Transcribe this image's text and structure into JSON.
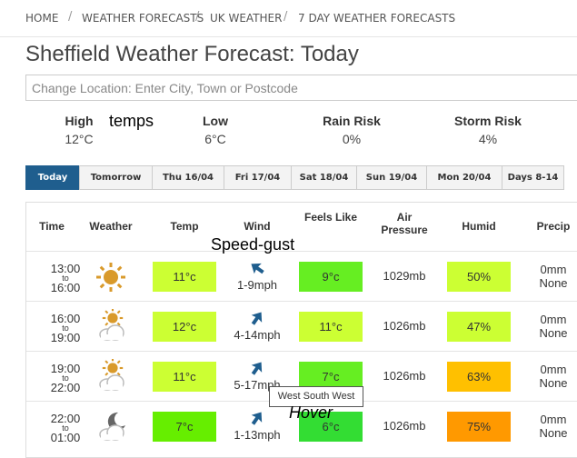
{
  "breadcrumb": [
    "HOME",
    "WEATHER FORECASTS",
    "UK WEATHER",
    "7 DAY WEATHER FORECASTS"
  ],
  "title": "Sheffield Weather Forecast: Today",
  "search_placeholder": "Change Location: Enter City, Town or Postcode",
  "summary": [
    {
      "label": "High",
      "value": "12°C"
    },
    {
      "label": "Low",
      "value": "6°C"
    },
    {
      "label": "Rain Risk",
      "value": "0%"
    },
    {
      "label": "Storm Risk",
      "value": "4%"
    }
  ],
  "annotations": {
    "temps": "temps",
    "wind": "Speed-gust",
    "hover": "Hover"
  },
  "tooltip": "West South West",
  "tabs": [
    "Today",
    "Tomorrow",
    "Thu 16/04",
    "Fri 17/04",
    "Sat 18/04",
    "Sun 19/04",
    "Mon 20/04",
    "Days 8-14"
  ],
  "table": {
    "headers": [
      "Time",
      "Weather",
      "Temp",
      "Wind",
      "Feels Like",
      "Air Pressure",
      "Humid",
      "Precip"
    ],
    "rows": [
      {
        "time": [
          "13:00",
          "to",
          "16:00"
        ],
        "temp": "11°c",
        "temp_color": "#ccff33",
        "wind": "1-9mph",
        "feels": "9°c",
        "feels_color": "#66ee22",
        "pressure": "1029mb",
        "humid": "50%",
        "humid_color": "#ccff33",
        "precip": [
          "0mm",
          "None"
        ]
      },
      {
        "time": [
          "16:00",
          "to",
          "19:00"
        ],
        "temp": "12°c",
        "temp_color": "#ccff33",
        "wind": "4-14mph",
        "feels": "11°c",
        "feels_color": "#ccff33",
        "pressure": "1026mb",
        "humid": "47%",
        "humid_color": "#ccff33",
        "precip": [
          "0mm",
          "None"
        ]
      },
      {
        "time": [
          "19:00",
          "to",
          "22:00"
        ],
        "temp": "11°c",
        "temp_color": "#ccff33",
        "wind": "5-17mph",
        "feels": "7°c",
        "feels_color": "#66ee22",
        "pressure": "1026mb",
        "humid": "63%",
        "humid_color": "#ffc000",
        "precip": [
          "0mm",
          "None"
        ]
      },
      {
        "time": [
          "22:00",
          "to",
          "01:00"
        ],
        "temp": "7°c",
        "temp_color": "#66ee00",
        "wind": "1-13mph",
        "feels": "6°c",
        "feels_color": "#33dd33",
        "pressure": "1026mb",
        "humid": "75%",
        "humid_color": "#ff9900",
        "precip": [
          "0mm",
          "None"
        ]
      }
    ]
  }
}
